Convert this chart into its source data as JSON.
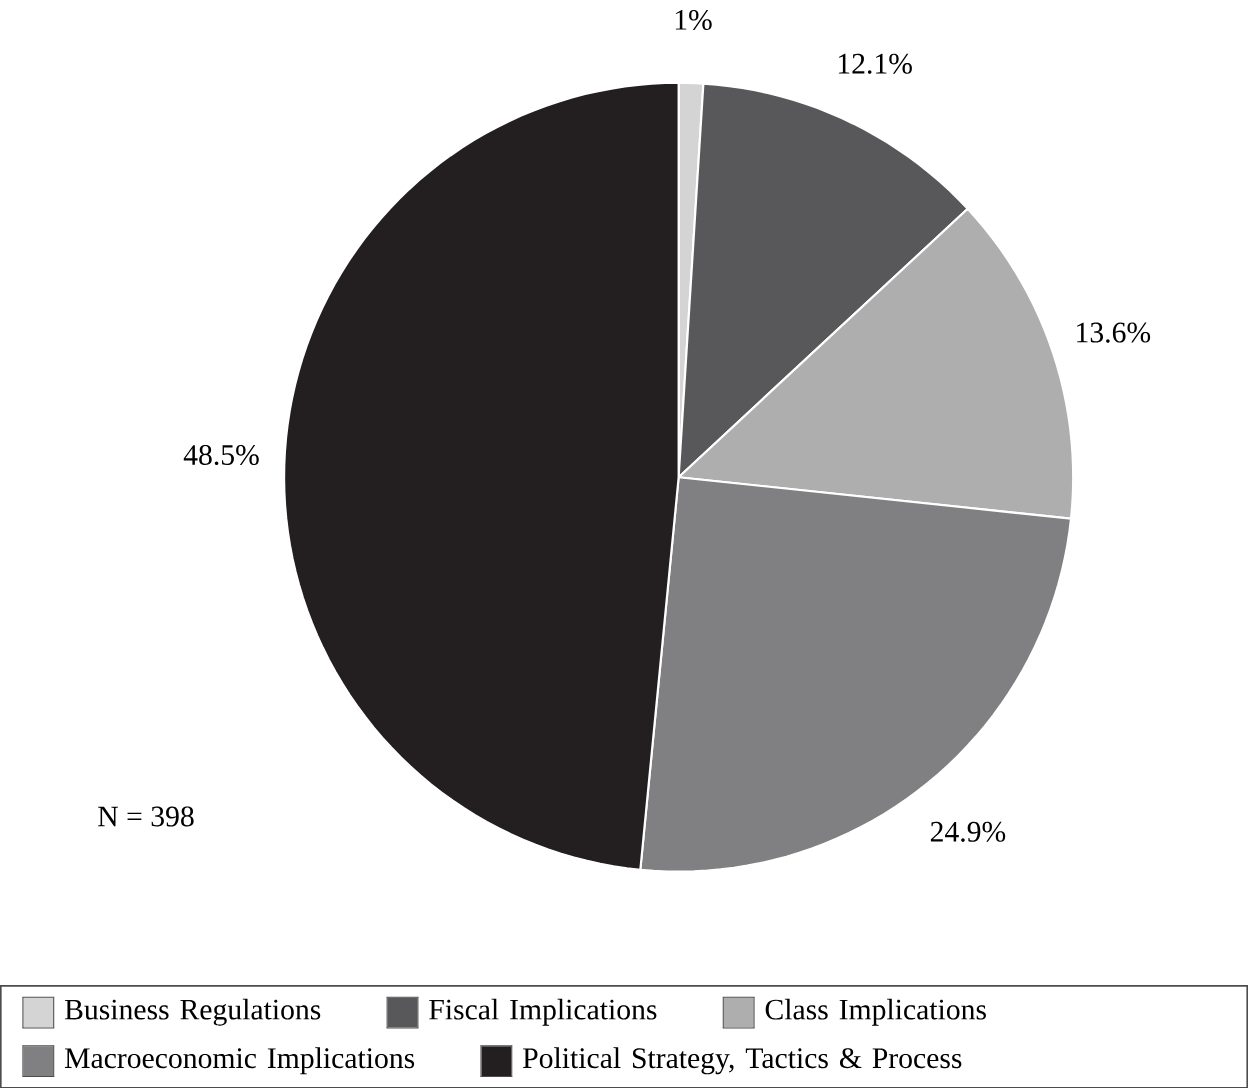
{
  "chart_data": {
    "type": "pie",
    "categories": [
      "Business Regulations",
      "Fiscal Implications",
      "Class Implications",
      "Macroeconomic Implications",
      "Political Strategy, Tactics & Process"
    ],
    "values": [
      1,
      12.1,
      13.6,
      24.9,
      48.5
    ],
    "colors": [
      "#d4d4d4",
      "#58585a",
      "#aeaeae",
      "#808082",
      "#231f20"
    ],
    "value_labels": [
      "1%",
      "12.1%",
      "13.6%",
      "24.9%",
      "48.5%"
    ],
    "annotations": [
      "N = 398"
    ],
    "legend": "bottom"
  }
}
